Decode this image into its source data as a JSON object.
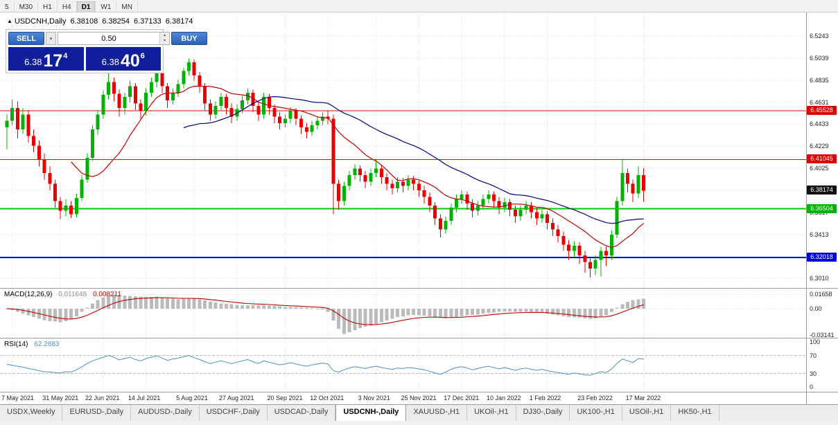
{
  "toolbar": {
    "items": [
      "5",
      "M30",
      "H1",
      "H4",
      "D1",
      "W1",
      "MN"
    ],
    "active": "D1"
  },
  "chart_header": {
    "collapse": "▲",
    "symbol": "USDCNH,Daily",
    "open": "6.38108",
    "high": "6.38254",
    "low": "6.37133",
    "close": "6.38174"
  },
  "trade_panel": {
    "sell_label": "SELL",
    "buy_label": "BUY",
    "volume": "0.50",
    "sell_price_prefix": "6.38",
    "sell_price_big": "17",
    "sell_price_sup": "4",
    "buy_price_prefix": "6.38",
    "buy_price_big": "40",
    "buy_price_sup": "6",
    "combo_arrow": "▾",
    "spin_up": "▴",
    "spin_down": "▾"
  },
  "indicators": {
    "macd": {
      "name": "MACD(12,26,9)",
      "value_main": "0.011648",
      "value_signal": "0.008211"
    },
    "rsi": {
      "name": "RSI(14)",
      "value": "62.2883"
    }
  },
  "price_axis": {
    "grid_labels": [
      "6.5243",
      "6.5039",
      "6.4835",
      "6.4631",
      "6.4433",
      "6.4229",
      "6.4025",
      "6.3821",
      "6.3617",
      "6.3413",
      "6.3209",
      "6.3010"
    ],
    "badges": [
      {
        "text": "6.45528",
        "bg": "#dd0000"
      },
      {
        "text": "6.41045",
        "bg": "#dd0000"
      },
      {
        "text": "6.38174",
        "bg": "#111111"
      },
      {
        "text": "6.36504",
        "bg": "#00b300"
      },
      {
        "text": "6.32018",
        "bg": "#0000dd"
      }
    ]
  },
  "macd_axis": [
    {
      "text": "0.01658",
      "value": 0.01658
    },
    {
      "text": "0.00",
      "value": 0
    },
    {
      "text": "-0.03141",
      "value": -0.03141
    }
  ],
  "rsi_axis": [
    {
      "text": "100",
      "value": 100
    },
    {
      "text": "70",
      "value": 70
    },
    {
      "text": "30",
      "value": 30
    },
    {
      "text": "0",
      "value": 0
    }
  ],
  "dates": {
    "labels": [
      "7 May 2021",
      "31 May 2021",
      "22 Jun 2021",
      "14 Jul 2021",
      "5 Aug 2021",
      "27 Aug 2021",
      "20 Sep 2021",
      "12 Oct 2021",
      "3 Nov 2021",
      "25 Nov 2021",
      "17 Dec 2021",
      "10 Jan 2022",
      "1 Feb 2022",
      "23 Feb 2022",
      "17 Mar 2022"
    ],
    "indices": [
      1,
      10,
      18,
      26,
      35,
      43,
      52,
      60,
      69,
      77,
      85,
      93,
      101,
      110,
      119
    ]
  },
  "tabs": {
    "items": [
      "USDX,Weekly",
      "EURUSD-,Daily",
      "AUDUSD-,Daily",
      "USDCHF-,Daily",
      "USDCAD-,Daily",
      "USDCNH-,Daily",
      "XAUUSD-,H1",
      "UKOil-,H1",
      "DJ30-,Daily",
      "UK100-,H1",
      "USOil-,H1",
      "HK50-,H1"
    ],
    "active_index": 5
  },
  "chart_data": {
    "type": "candlestick",
    "symbol": "USDCNH",
    "timeframe": "Daily",
    "price_range": [
      6.292,
      6.546
    ],
    "up_color": "#00b200",
    "down_color": "#e80000",
    "hlines": [
      {
        "price": 6.45528,
        "color": "#ee0000",
        "width": 1
      },
      {
        "price": 6.41045,
        "color": "#ee0000",
        "width": 1
      },
      {
        "price": 6.36504,
        "color": "#00cc00",
        "width": 2
      },
      {
        "price": 6.32018,
        "color": "#0000ee",
        "width": 2
      }
    ],
    "ma": [
      {
        "period": 13,
        "color": "#c00000"
      },
      {
        "period": 34,
        "color": "#000080"
      }
    ],
    "candles": [
      [
        6.44,
        6.452,
        6.42,
        6.446
      ],
      [
        6.446,
        6.466,
        6.442,
        6.458
      ],
      [
        6.458,
        6.464,
        6.43,
        6.438
      ],
      [
        6.438,
        6.458,
        6.434,
        6.452
      ],
      [
        6.452,
        6.456,
        6.426,
        6.432
      ],
      [
        6.432,
        6.438,
        6.417,
        6.423
      ],
      [
        6.423,
        6.428,
        6.404,
        6.41
      ],
      [
        6.41,
        6.416,
        6.392,
        6.398
      ],
      [
        6.398,
        6.404,
        6.382,
        6.388
      ],
      [
        6.388,
        6.392,
        6.366,
        6.372
      ],
      [
        6.372,
        6.376,
        6.3555,
        6.363
      ],
      [
        6.363,
        6.374,
        6.358,
        6.368
      ],
      [
        6.368,
        6.372,
        6.3565,
        6.36
      ],
      [
        6.36,
        6.379,
        6.357,
        6.375
      ],
      [
        6.375,
        6.396,
        6.372,
        6.392
      ],
      [
        6.392,
        6.416,
        6.389,
        6.412
      ],
      [
        6.412,
        6.442,
        6.409,
        6.438
      ],
      [
        6.438,
        6.456,
        6.433,
        6.452
      ],
      [
        6.452,
        6.474,
        6.448,
        6.47
      ],
      [
        6.47,
        6.49,
        6.466,
        6.482
      ],
      [
        6.482,
        6.486,
        6.464,
        6.471
      ],
      [
        6.471,
        6.475,
        6.45,
        6.458
      ],
      [
        6.458,
        6.472,
        6.452,
        6.468
      ],
      [
        6.468,
        6.483,
        6.463,
        6.478
      ],
      [
        6.478,
        6.481,
        6.456,
        6.462
      ],
      [
        6.462,
        6.466,
        6.448,
        6.455
      ],
      [
        6.455,
        6.476,
        6.451,
        6.472
      ],
      [
        6.472,
        6.486,
        6.468,
        6.482
      ],
      [
        6.482,
        6.493,
        6.477,
        6.49
      ],
      [
        6.49,
        6.493,
        6.472,
        6.478
      ],
      [
        6.478,
        6.481,
        6.458,
        6.465
      ],
      [
        6.465,
        6.476,
        6.461,
        6.472
      ],
      [
        6.472,
        6.484,
        6.468,
        6.48
      ],
      [
        6.48,
        6.495,
        6.476,
        6.492
      ],
      [
        6.492,
        6.5035,
        6.488,
        6.5
      ],
      [
        6.5,
        6.5025,
        6.483,
        6.488
      ],
      [
        6.488,
        6.491,
        6.472,
        6.478
      ],
      [
        6.478,
        6.481,
        6.456,
        6.462
      ],
      [
        6.462,
        6.466,
        6.446,
        6.452
      ],
      [
        6.452,
        6.464,
        6.448,
        6.46
      ],
      [
        6.46,
        6.472,
        6.456,
        6.468
      ],
      [
        6.468,
        6.471,
        6.452,
        6.458
      ],
      [
        6.458,
        6.462,
        6.444,
        6.45
      ],
      [
        6.45,
        6.461,
        6.446,
        6.457
      ],
      [
        6.457,
        6.469,
        6.453,
        6.465
      ],
      [
        6.465,
        6.476,
        6.461,
        6.472
      ],
      [
        6.472,
        6.475,
        6.454,
        6.46
      ],
      [
        6.46,
        6.464,
        6.446,
        6.452
      ],
      [
        6.452,
        6.472,
        6.448,
        6.468
      ],
      [
        6.468,
        6.471,
        6.452,
        6.458
      ],
      [
        6.458,
        6.461,
        6.444,
        6.45
      ],
      [
        6.45,
        6.454,
        6.438,
        6.444
      ],
      [
        6.444,
        6.452,
        6.44,
        6.448
      ],
      [
        6.448,
        6.459,
        6.444,
        6.455
      ],
      [
        6.455,
        6.458,
        6.442,
        6.448
      ],
      [
        6.448,
        6.451,
        6.434,
        6.44
      ],
      [
        6.44,
        6.444,
        6.43,
        6.436
      ],
      [
        6.436,
        6.446,
        6.432,
        6.442
      ],
      [
        6.442,
        6.45,
        6.438,
        6.446
      ],
      [
        6.446,
        6.454,
        6.442,
        6.45
      ],
      [
        6.45,
        6.455,
        6.443,
        6.448
      ],
      [
        6.448,
        6.452,
        6.36,
        6.388
      ],
      [
        6.388,
        6.392,
        6.364,
        6.372
      ],
      [
        6.372,
        6.39,
        6.368,
        6.386
      ],
      [
        6.386,
        6.4,
        6.382,
        6.396
      ],
      [
        6.396,
        6.406,
        6.392,
        6.402
      ],
      [
        6.402,
        6.405,
        6.39,
        6.396
      ],
      [
        6.396,
        6.4,
        6.384,
        6.39
      ],
      [
        6.39,
        6.402,
        6.386,
        6.398
      ],
      [
        6.398,
        6.41,
        6.394,
        6.402
      ],
      [
        6.402,
        6.405,
        6.388,
        6.394
      ],
      [
        6.394,
        6.398,
        6.382,
        6.388
      ],
      [
        6.388,
        6.392,
        6.378,
        6.384
      ],
      [
        6.384,
        6.394,
        6.38,
        6.39
      ],
      [
        6.39,
        6.393,
        6.38,
        6.386
      ],
      [
        6.386,
        6.396,
        6.382,
        6.392
      ],
      [
        6.392,
        6.395,
        6.382,
        6.388
      ],
      [
        6.388,
        6.391,
        6.376,
        6.382
      ],
      [
        6.382,
        6.386,
        6.37,
        6.376
      ],
      [
        6.376,
        6.38,
        6.362,
        6.368
      ],
      [
        6.368,
        6.371,
        6.35,
        6.356
      ],
      [
        6.356,
        6.36,
        6.3385,
        6.346
      ],
      [
        6.346,
        6.358,
        6.342,
        6.354
      ],
      [
        6.354,
        6.37,
        6.35,
        6.366
      ],
      [
        6.366,
        6.378,
        6.362,
        6.374
      ],
      [
        6.374,
        6.382,
        6.37,
        6.378
      ],
      [
        6.378,
        6.381,
        6.364,
        6.37
      ],
      [
        6.37,
        6.374,
        6.357,
        6.363
      ],
      [
        6.363,
        6.372,
        6.359,
        6.368
      ],
      [
        6.368,
        6.378,
        6.364,
        6.374
      ],
      [
        6.374,
        6.382,
        6.37,
        6.378
      ],
      [
        6.378,
        6.381,
        6.366,
        6.372
      ],
      [
        6.372,
        6.376,
        6.36,
        6.366
      ],
      [
        6.366,
        6.375,
        6.362,
        6.371
      ],
      [
        6.371,
        6.374,
        6.358,
        6.364
      ],
      [
        6.364,
        6.368,
        6.352,
        6.358
      ],
      [
        6.358,
        6.368,
        6.354,
        6.364
      ],
      [
        6.364,
        6.372,
        6.36,
        6.368
      ],
      [
        6.368,
        6.371,
        6.356,
        6.362
      ],
      [
        6.362,
        6.366,
        6.35,
        6.356
      ],
      [
        6.356,
        6.364,
        6.352,
        6.36
      ],
      [
        6.36,
        6.363,
        6.346,
        6.352
      ],
      [
        6.352,
        6.356,
        6.34,
        6.346
      ],
      [
        6.346,
        6.35,
        6.334,
        6.34
      ],
      [
        6.34,
        6.344,
        6.326,
        6.332
      ],
      [
        6.332,
        6.336,
        6.318,
        6.326
      ],
      [
        6.326,
        6.335,
        6.32,
        6.331
      ],
      [
        6.331,
        6.334,
        6.314,
        6.322
      ],
      [
        6.322,
        6.326,
        6.306,
        6.316
      ],
      [
        6.316,
        6.32,
        6.3015,
        6.31
      ],
      [
        6.31,
        6.322,
        6.304,
        6.318
      ],
      [
        6.318,
        6.33,
        6.3025,
        6.326
      ],
      [
        6.326,
        6.33,
        6.312,
        6.322
      ],
      [
        6.322,
        6.345,
        6.318,
        6.341
      ],
      [
        6.341,
        6.376,
        6.338,
        6.372
      ],
      [
        6.372,
        6.411,
        6.368,
        6.398
      ],
      [
        6.398,
        6.402,
        6.38,
        6.388
      ],
      [
        6.388,
        6.392,
        6.371,
        6.379
      ],
      [
        6.379,
        6.404,
        6.375,
        6.396
      ],
      [
        6.396,
        6.4025,
        6.3713,
        6.3817
      ]
    ],
    "macd": {
      "range": [
        -0.0345,
        0.0235
      ],
      "hist_color": "#bbbbbb",
      "signal_color": "#c00000",
      "signal_period": 9,
      "values": [
        0.0,
        -0.002,
        -0.004,
        -0.006,
        -0.008,
        -0.01,
        -0.012,
        -0.0135,
        -0.015,
        -0.0155,
        -0.016,
        -0.015,
        -0.013,
        -0.009,
        -0.004,
        0.001,
        0.006,
        0.01,
        0.013,
        0.015,
        0.0166,
        0.016,
        0.0155,
        0.015,
        0.0145,
        0.014,
        0.0135,
        0.0135,
        0.014,
        0.013,
        0.012,
        0.0115,
        0.011,
        0.0115,
        0.012,
        0.0115,
        0.011,
        0.0095,
        0.008,
        0.007,
        0.006,
        0.0055,
        0.005,
        0.0045,
        0.004,
        0.004,
        0.004,
        0.004,
        0.004,
        0.0035,
        0.003,
        0.0025,
        0.002,
        0.002,
        0.002,
        0.0015,
        0.001,
        0.0005,
        0.0,
        0.0,
        -0.004,
        -0.014,
        -0.024,
        -0.03,
        -0.028,
        -0.0255,
        -0.023,
        -0.0215,
        -0.02,
        -0.018,
        -0.016,
        -0.014,
        -0.012,
        -0.01,
        -0.009,
        -0.008,
        -0.0075,
        -0.008,
        -0.0085,
        -0.009,
        -0.01,
        -0.011,
        -0.0115,
        -0.011,
        -0.01,
        -0.009,
        -0.008,
        -0.0075,
        -0.007,
        -0.006,
        -0.005,
        -0.0045,
        -0.004,
        -0.0035,
        -0.0035,
        -0.004,
        -0.004,
        -0.004,
        -0.0042,
        -0.0045,
        -0.005,
        -0.006,
        -0.007,
        -0.008,
        -0.009,
        -0.01,
        -0.0105,
        -0.011,
        -0.0115,
        -0.012,
        -0.0115,
        -0.01,
        -0.008,
        -0.004,
        0.001,
        0.005,
        0.008,
        0.01,
        0.011,
        0.0116
      ]
    },
    "rsi": {
      "range": [
        0,
        100
      ],
      "levels": [
        70,
        30
      ],
      "color": "#4a90c4",
      "values": [
        50,
        48,
        46,
        44,
        41,
        39,
        36,
        34,
        33,
        32,
        31,
        34,
        33,
        38,
        45,
        52,
        58,
        62,
        66,
        70,
        66,
        60,
        63,
        66,
        61,
        58,
        63,
        66,
        69,
        64,
        59,
        62,
        64,
        67,
        70,
        65,
        61,
        56,
        52,
        55,
        58,
        55,
        52,
        55,
        58,
        61,
        56,
        52,
        58,
        55,
        52,
        49,
        51,
        54,
        51,
        48,
        46,
        49,
        51,
        53,
        51,
        36,
        33,
        38,
        42,
        45,
        43,
        41,
        44,
        46,
        43,
        41,
        39,
        42,
        41,
        43,
        42,
        40,
        38,
        35,
        31,
        28,
        33,
        39,
        43,
        45,
        42,
        38,
        41,
        44,
        46,
        43,
        40,
        43,
        40,
        37,
        40,
        42,
        39,
        37,
        39,
        36,
        34,
        32,
        30,
        28,
        31,
        29,
        27,
        26,
        30,
        34,
        32,
        40,
        52,
        62,
        58,
        54,
        63,
        62.3
      ]
    }
  }
}
